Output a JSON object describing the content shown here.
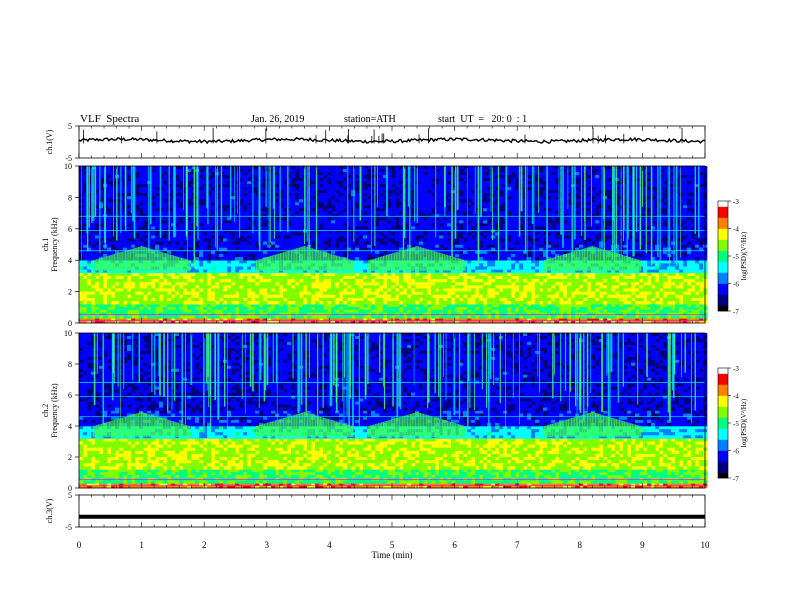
{
  "header": {
    "title": "VLF  Spectra",
    "date": "Jan. 26, 2019",
    "station": "station=ATH",
    "start": "start  UT  =   20: 0  : 1"
  },
  "chart_data": [
    {
      "type": "line",
      "name": "ch1-voltage",
      "ylabel": "ch.1(V)",
      "ylim": [
        -5,
        5
      ],
      "yticks": [
        "5",
        "-5"
      ],
      "x_range": [
        0,
        10
      ],
      "level": 0.5,
      "color": "#000000"
    },
    {
      "type": "heatmap",
      "name": "ch1-spectrogram",
      "ylabel": "ch.1\nFrequency (kHz)",
      "ylim": [
        0,
        10
      ],
      "yticks": [
        "0",
        "2",
        "4",
        "6",
        "8",
        "10"
      ],
      "x_range": [
        0,
        10
      ],
      "colorbar": {
        "label": "log(PSD)(V²/Hz)",
        "ticks": [
          "-3",
          "-4",
          "-5",
          "-6",
          "-7"
        ],
        "range": [
          -7,
          -3
        ]
      },
      "bands": [
        {
          "from_khz": 0,
          "to_khz": 0.3,
          "level": -3.5
        },
        {
          "from_khz": 0.3,
          "to_khz": 1.2,
          "level": -4.8
        },
        {
          "from_khz": 1.2,
          "to_khz": 3.2,
          "level": -4.3
        },
        {
          "from_khz": 3.2,
          "to_khz": 4.0,
          "level": -5.6
        },
        {
          "from_khz": 4.0,
          "to_khz": 5.0,
          "level": -6.5
        },
        {
          "from_khz": 5.0,
          "to_khz": 10.0,
          "level": -6.6
        }
      ],
      "chorus_emissions_min": [
        1.0,
        3.6,
        5.4,
        8.2
      ]
    },
    {
      "type": "heatmap",
      "name": "ch2-spectrogram",
      "ylabel": "ch.2\nFrequency (kHz)",
      "ylim": [
        0,
        10
      ],
      "yticks": [
        "0",
        "2",
        "4",
        "6",
        "8",
        "10"
      ],
      "x_range": [
        0,
        10
      ],
      "colorbar": {
        "label": "log(PSD)(V²/Hz)",
        "ticks": [
          "-3",
          "-4",
          "-5",
          "-6",
          "-7"
        ],
        "range": [
          -7,
          -3
        ]
      },
      "bands": [
        {
          "from_khz": 0,
          "to_khz": 0.3,
          "level": -3.5
        },
        {
          "from_khz": 0.3,
          "to_khz": 1.2,
          "level": -4.8
        },
        {
          "from_khz": 1.2,
          "to_khz": 3.2,
          "level": -4.3
        },
        {
          "from_khz": 3.2,
          "to_khz": 4.0,
          "level": -5.6
        },
        {
          "from_khz": 4.0,
          "to_khz": 5.0,
          "level": -6.5
        },
        {
          "from_khz": 5.0,
          "to_khz": 10.0,
          "level": -6.6
        }
      ],
      "chorus_emissions_min": [
        1.0,
        3.6,
        5.4,
        8.2
      ]
    },
    {
      "type": "line",
      "name": "ch3-voltage",
      "ylabel": "ch.3(V)",
      "ylim": [
        -5,
        5
      ],
      "yticks": [
        "5",
        "-5"
      ],
      "x_range": [
        0,
        10
      ],
      "level": -1.8,
      "color": "#000000"
    }
  ],
  "xaxis": {
    "label": "Time  (min)",
    "ticks": [
      "0",
      "1",
      "2",
      "3",
      "4",
      "5",
      "6",
      "7",
      "8",
      "9",
      "10"
    ],
    "range": [
      0,
      10
    ]
  },
  "colormap": [
    "#000000",
    "#00007a",
    "#0000ff",
    "#0080ff",
    "#00ffff",
    "#00ff80",
    "#80ff00",
    "#ffff00",
    "#ff8000",
    "#ff0000",
    "#ffffff"
  ]
}
